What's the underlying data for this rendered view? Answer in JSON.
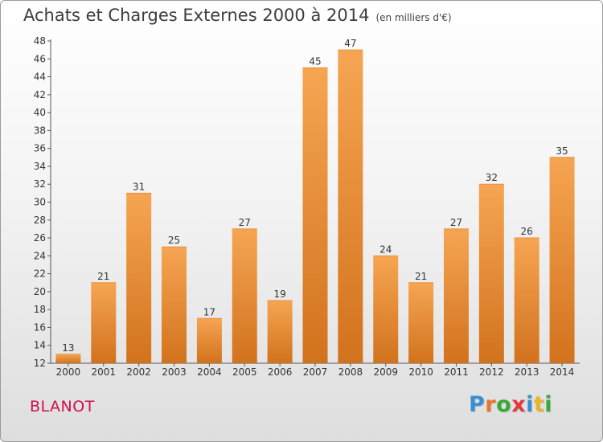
{
  "header": {
    "title": "Achats et Charges Externes 2000 à 2014",
    "subtitle": "(en milliers d'€)"
  },
  "footer": {
    "place": "BLANOT",
    "logo_letters": [
      "P",
      "r",
      "o",
      "x",
      "i",
      "t",
      "i"
    ]
  },
  "colors": {
    "bar_light": "#f6a552",
    "bar_dark": "#d2721d",
    "logo": [
      "#3a8fd4",
      "#e8762a",
      "#3aa836",
      "#e23a3a",
      "#3a8fd4",
      "#e8b52a",
      "#3aa836"
    ]
  },
  "chart_data": {
    "type": "bar",
    "title": "Achats et Charges Externes 2000 à 2014",
    "subtitle": "(en milliers d'€)",
    "xlabel": "",
    "ylabel": "",
    "categories": [
      "2000",
      "2001",
      "2002",
      "2003",
      "2004",
      "2005",
      "2006",
      "2007",
      "2008",
      "2009",
      "2010",
      "2011",
      "2012",
      "2013",
      "2014"
    ],
    "values": [
      13,
      21,
      31,
      25,
      17,
      27,
      19,
      45,
      47,
      24,
      21,
      27,
      32,
      26,
      35
    ],
    "ylim": [
      12,
      48
    ],
    "yticks": [
      12,
      14,
      16,
      18,
      20,
      22,
      24,
      26,
      28,
      30,
      32,
      34,
      36,
      38,
      40,
      42,
      44,
      46,
      48
    ],
    "grid": false,
    "legend": "none"
  }
}
